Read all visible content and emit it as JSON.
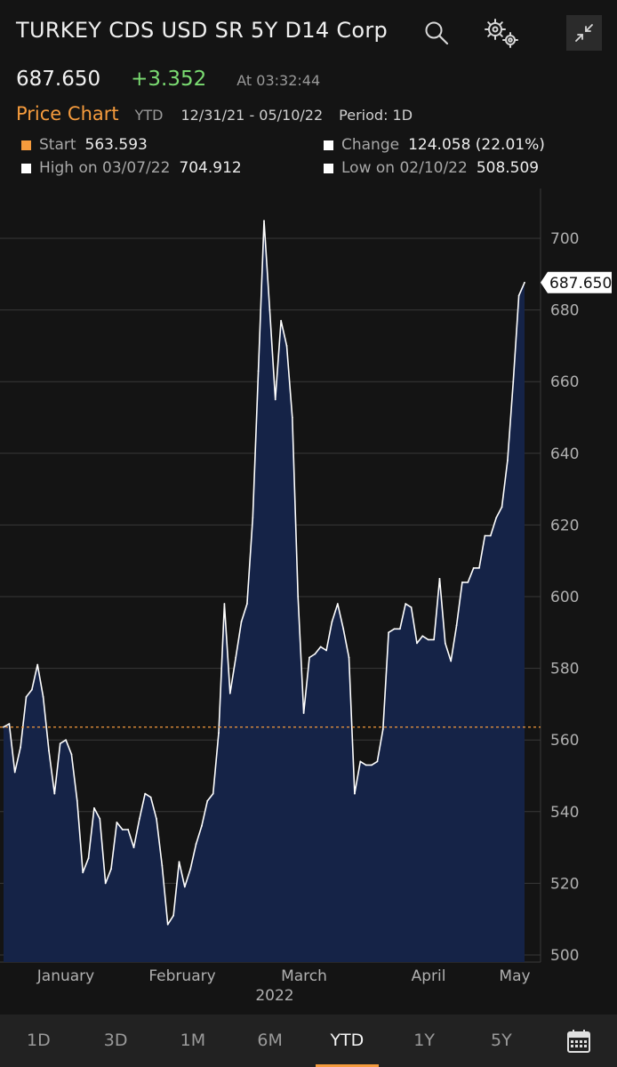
{
  "header": {
    "title": "TURKEY CDS USD SR 5Y D14 Corp",
    "icons": [
      "search-icon",
      "settings-icon",
      "collapse-icon"
    ]
  },
  "quote": {
    "last": "687.650",
    "change": "+3.352",
    "time": "At 03:32:44"
  },
  "meta": {
    "chart_title": "Price Chart",
    "range": "YTD",
    "dates": "12/31/21 - 05/10/22",
    "period": "Period: 1D"
  },
  "stats": {
    "start": {
      "label": "Start",
      "value": "563.593",
      "color": "#f59b3d"
    },
    "change": {
      "label": "Change",
      "value": "124.058 (22.01%)",
      "color": "#ffffff"
    },
    "high": {
      "label": "High on 03/07/22",
      "value": "704.912",
      "color": "#ffffff"
    },
    "low": {
      "label": "Low on 02/10/22",
      "value": "508.509",
      "color": "#ffffff"
    }
  },
  "colors": {
    "fill": "#152347",
    "line": "#ffffff",
    "start_line": "#f59b3d",
    "change_up": "#7bdc72",
    "accent": "#f59b3d"
  },
  "chart_data": {
    "type": "area",
    "title": "",
    "xlabel": "2022",
    "ylabel": "",
    "ylim": [
      500,
      710
    ],
    "yticks": [
      "500",
      "520",
      "540",
      "560",
      "580",
      "600",
      "620",
      "640",
      "660",
      "680",
      "700"
    ],
    "xticks": [
      "January",
      "February",
      "March",
      "April",
      "May"
    ],
    "year_label": "2022",
    "start_value": 563.593,
    "last_label": "687.650",
    "grid": true,
    "series": [
      {
        "values": [
          563.6,
          564.5,
          551,
          558,
          572,
          574,
          581,
          572,
          557,
          545,
          559,
          560,
          556,
          543,
          523,
          527,
          541,
          538,
          520,
          524,
          537,
          535,
          535,
          530,
          538,
          545,
          544,
          538,
          525,
          508.5,
          511,
          526,
          519,
          524,
          531,
          536,
          543,
          545,
          562,
          598,
          573,
          583,
          593,
          598,
          622,
          663,
          704.9,
          680,
          655,
          677,
          670,
          650,
          600,
          567.5,
          583,
          584,
          586,
          585,
          593,
          598,
          591,
          583,
          545,
          554,
          553,
          553,
          554,
          563,
          590,
          591,
          591,
          598,
          597,
          587,
          589,
          588,
          588,
          605,
          587,
          582,
          592,
          604,
          604,
          608,
          608,
          617,
          617,
          622,
          625,
          638,
          660,
          684,
          687.65
        ]
      }
    ]
  },
  "tabs": [
    {
      "label": "1D"
    },
    {
      "label": "3D"
    },
    {
      "label": "1M"
    },
    {
      "label": "6M"
    },
    {
      "label": "YTD",
      "active": true
    },
    {
      "label": "1Y"
    },
    {
      "label": "5Y"
    }
  ],
  "calendar_icon": "calendar-icon"
}
